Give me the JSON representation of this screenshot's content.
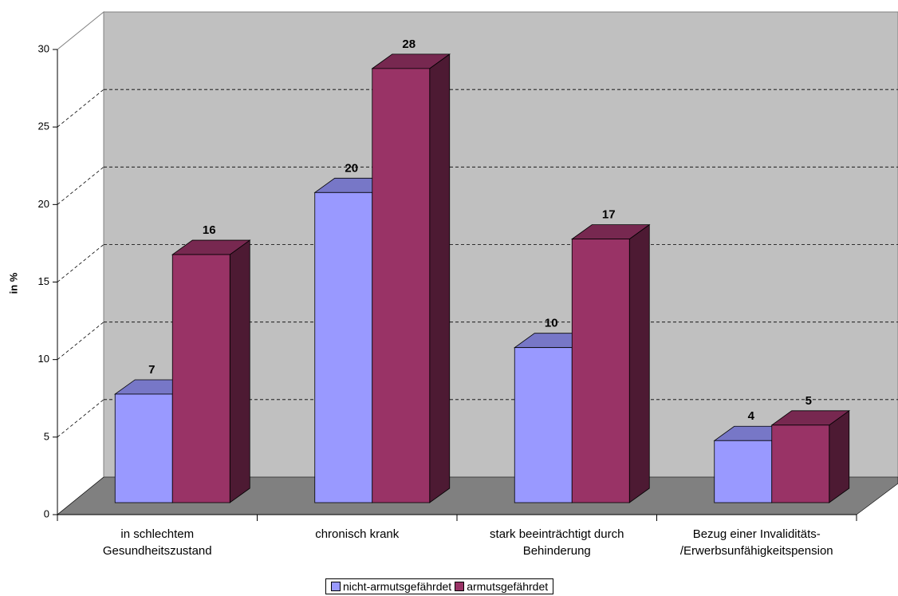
{
  "chart_data": {
    "type": "bar3d",
    "categories": [
      "in schlechtem\nGesundheitszustand",
      "chronisch krank",
      "stark beeinträchtigt durch\nBehinderung",
      "Bezug einer Invaliditäts-\n/Erwerbsunfähigkeitspension"
    ],
    "series": [
      {
        "name": "nicht-armutsgefährdet",
        "color": "#9999ff",
        "values": [
          7,
          20,
          10,
          4
        ]
      },
      {
        "name": "armutsgefährdet",
        "color": "#993366",
        "values": [
          16,
          28,
          17,
          5
        ]
      }
    ],
    "ylabel": "in %",
    "ylim": [
      0,
      30
    ],
    "yticks": [
      0,
      5,
      10,
      15,
      20,
      25,
      30
    ],
    "grid": true,
    "legend": "bottom"
  }
}
